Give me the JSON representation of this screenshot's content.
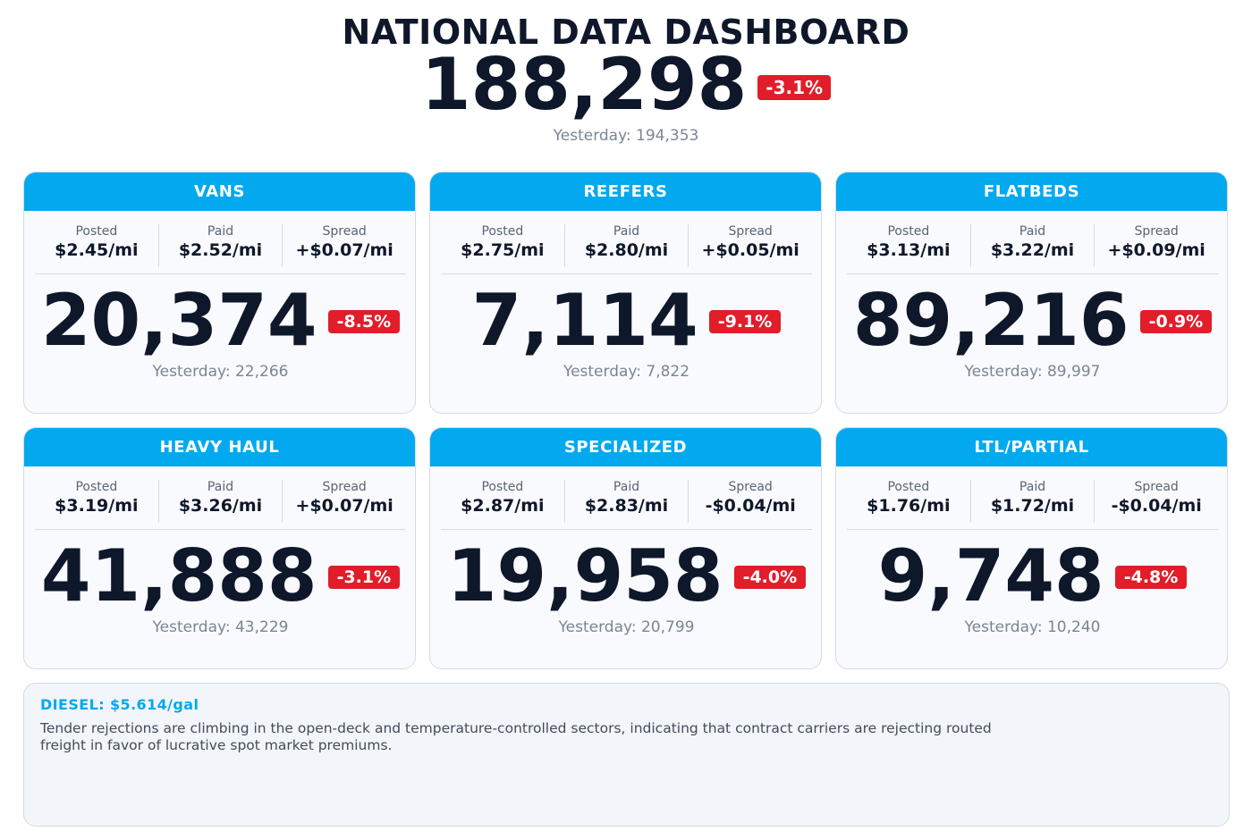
{
  "header": {
    "title": "NATIONAL DATA DASHBOARD",
    "total": "188,298",
    "change": "-3.1%",
    "yesterday": "Yesterday: 194,353"
  },
  "labels": {
    "posted": "Posted",
    "paid": "Paid",
    "spread": "Spread"
  },
  "cards": [
    {
      "title": "VANS",
      "posted": "$2.45/mi",
      "paid": "$2.52/mi",
      "spread": "+$0.07/mi",
      "count": "20,374",
      "change": "-8.5%",
      "yesterday": "Yesterday: 22,266"
    },
    {
      "title": "REEFERS",
      "posted": "$2.75/mi",
      "paid": "$2.80/mi",
      "spread": "+$0.05/mi",
      "count": "7,114",
      "change": "-9.1%",
      "yesterday": "Yesterday: 7,822"
    },
    {
      "title": "FLATBEDS",
      "posted": "$3.13/mi",
      "paid": "$3.22/mi",
      "spread": "+$0.09/mi",
      "count": "89,216",
      "change": "-0.9%",
      "yesterday": "Yesterday: 89,997"
    },
    {
      "title": "HEAVY HAUL",
      "posted": "$3.19/mi",
      "paid": "$3.26/mi",
      "spread": "+$0.07/mi",
      "count": "41,888",
      "change": "-3.1%",
      "yesterday": "Yesterday: 43,229"
    },
    {
      "title": "SPECIALIZED",
      "posted": "$2.87/mi",
      "paid": "$2.83/mi",
      "spread": "-$0.04/mi",
      "count": "19,958",
      "change": "-4.0%",
      "yesterday": "Yesterday: 20,799"
    },
    {
      "title": "LTL/PARTIAL",
      "posted": "$1.76/mi",
      "paid": "$1.72/mi",
      "spread": "-$0.04/mi",
      "count": "9,748",
      "change": "-4.8%",
      "yesterday": "Yesterday: 10,240"
    }
  ],
  "footer": {
    "diesel_label": "DIESEL:",
    "diesel_value": "$5.614/gal",
    "commentary": "Tender rejections are climbing in the open-deck and temperature-controlled sectors, indicating that contract carriers are rejecting routed freight in favor of lucrative spot market premiums."
  },
  "colors": {
    "accent": "#03a9ee",
    "negative": "#e11d2a",
    "text": "#0f172a",
    "muted": "#7b8594"
  }
}
